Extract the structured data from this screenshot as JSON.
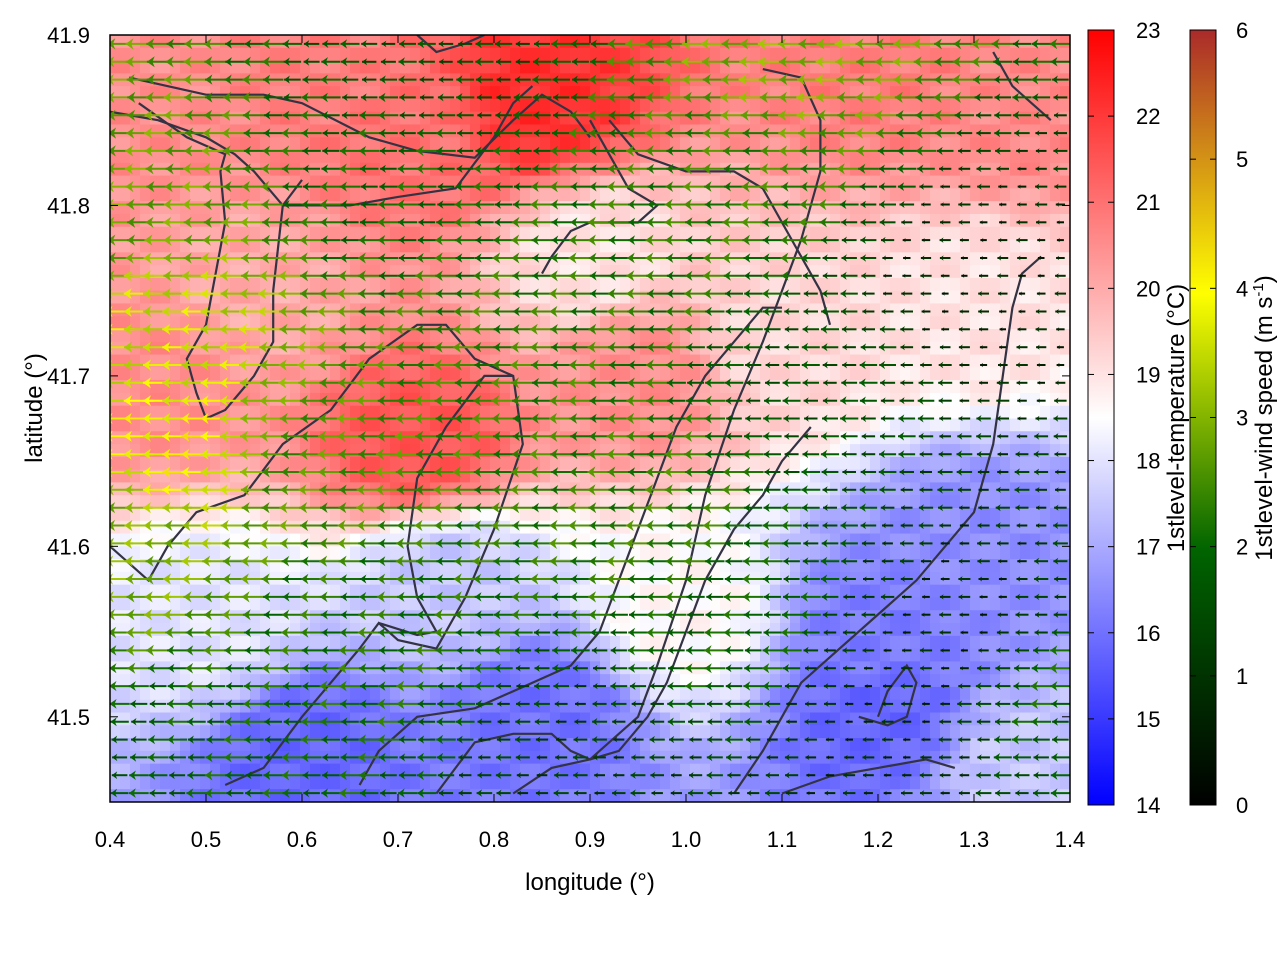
{
  "chart_data": {
    "type": "heatmap",
    "title": "",
    "xlabel": "longitude (°)",
    "ylabel": "latitude (°)",
    "xlim": [
      0.4,
      1.4
    ],
    "ylim": [
      41.45,
      41.9
    ],
    "x_ticks": [
      "0.4",
      "0.5",
      "0.6",
      "0.7",
      "0.8",
      "0.9",
      "1.0",
      "1.1",
      "1.2",
      "1.3",
      "1.4"
    ],
    "y_ticks": [
      "41.5",
      "41.6",
      "41.7",
      "41.8",
      "41.9"
    ],
    "temperature_colorbar": {
      "label": "1stlevel-temperature (°C)",
      "range": [
        14,
        23
      ],
      "ticks": [
        "14",
        "15",
        "16",
        "17",
        "18",
        "19",
        "20",
        "21",
        "22",
        "23"
      ],
      "colors": [
        "#0000ff",
        "#ffffff",
        "#ff0000"
      ]
    },
    "wind_colorbar": {
      "label_main": "1stlevel-wind speed (m s",
      "label_sup": "-1",
      "label_end": ")",
      "range": [
        0,
        6
      ],
      "ticks": [
        "0",
        "1",
        "2",
        "3",
        "4",
        "5",
        "6"
      ],
      "colors": [
        "#000000",
        "#006400",
        "#ffff00",
        "#aa2a2a"
      ]
    },
    "temperature_zones": [
      {
        "lon": 0.45,
        "lat": 41.87,
        "t": 20.5
      },
      {
        "lon": 0.62,
        "lat": 41.88,
        "t": 20.8
      },
      {
        "lon": 0.84,
        "lat": 41.86,
        "t": 22.2
      },
      {
        "lon": 0.72,
        "lat": 41.84,
        "t": 21.0
      },
      {
        "lon": 1.2,
        "lat": 41.88,
        "t": 20.8
      },
      {
        "lon": 1.35,
        "lat": 41.86,
        "t": 20.6
      },
      {
        "lon": 0.9,
        "lat": 41.77,
        "t": 19.0
      },
      {
        "lon": 0.55,
        "lat": 41.75,
        "t": 20.0
      },
      {
        "lon": 0.45,
        "lat": 41.7,
        "t": 20.5
      },
      {
        "lon": 0.72,
        "lat": 41.66,
        "t": 21.5
      },
      {
        "lon": 0.95,
        "lat": 41.7,
        "t": 20.5
      },
      {
        "lon": 1.1,
        "lat": 41.72,
        "t": 19.2
      },
      {
        "lon": 1.3,
        "lat": 41.74,
        "t": 19.0
      },
      {
        "lon": 0.5,
        "lat": 41.55,
        "t": 18.0
      },
      {
        "lon": 0.75,
        "lat": 41.58,
        "t": 17.5
      },
      {
        "lon": 0.6,
        "lat": 41.48,
        "t": 15.8
      },
      {
        "lon": 0.85,
        "lat": 41.5,
        "t": 16.0
      },
      {
        "lon": 1.0,
        "lat": 41.56,
        "t": 18.6
      },
      {
        "lon": 1.2,
        "lat": 41.55,
        "t": 16.2
      },
      {
        "lon": 1.3,
        "lat": 41.6,
        "t": 16.5
      },
      {
        "lon": 1.2,
        "lat": 41.5,
        "t": 15.8
      },
      {
        "lon": 1.35,
        "lat": 41.47,
        "t": 17.5
      }
    ],
    "wind_zones": [
      {
        "lon": 0.45,
        "lat": 41.72,
        "s": 3.6
      },
      {
        "lon": 0.48,
        "lat": 41.66,
        "s": 4.0
      },
      {
        "lon": 0.42,
        "lat": 41.6,
        "s": 3.0
      },
      {
        "lon": 0.42,
        "lat": 41.8,
        "s": 2.8
      },
      {
        "lon": 0.6,
        "lat": 41.65,
        "s": 2.6
      },
      {
        "lon": 0.8,
        "lat": 41.7,
        "s": 2.4
      },
      {
        "lon": 0.65,
        "lat": 41.55,
        "s": 2.2
      },
      {
        "lon": 0.95,
        "lat": 41.62,
        "s": 2.4
      },
      {
        "lon": 1.05,
        "lat": 41.55,
        "s": 2.0
      },
      {
        "lon": 0.55,
        "lat": 41.48,
        "s": 2.0
      },
      {
        "lon": 0.7,
        "lat": 41.82,
        "s": 2.0
      },
      {
        "lon": 0.75,
        "lat": 41.88,
        "s": 1.6
      },
      {
        "lon": 1.1,
        "lat": 41.88,
        "s": 3.0
      },
      {
        "lon": 1.05,
        "lat": 41.82,
        "s": 2.4
      },
      {
        "lon": 0.95,
        "lat": 41.78,
        "s": 2.3
      },
      {
        "lon": 1.15,
        "lat": 41.7,
        "s": 1.6
      },
      {
        "lon": 1.3,
        "lat": 41.75,
        "s": 0.7
      },
      {
        "lon": 1.3,
        "lat": 41.55,
        "s": 0.8
      },
      {
        "lon": 1.2,
        "lat": 41.5,
        "s": 0.8
      },
      {
        "lon": 1.38,
        "lat": 41.52,
        "s": 2.0
      },
      {
        "lon": 0.9,
        "lat": 41.47,
        "s": 1.2
      },
      {
        "lon": 0.4,
        "lat": 41.47,
        "s": 1.8
      }
    ],
    "wind_direction": "westward",
    "contour_lines": [
      [
        [
          0.42,
          41.875
        ],
        [
          0.5,
          41.865
        ],
        [
          0.56,
          41.865
        ],
        [
          0.6,
          41.86
        ],
        [
          0.67,
          41.84
        ],
        [
          0.72,
          41.832
        ],
        [
          0.78,
          41.828
        ],
        [
          0.82,
          41.85
        ],
        [
          0.85,
          41.865
        ],
        [
          0.88,
          41.855
        ],
        [
          0.9,
          41.84
        ]
      ],
      [
        [
          0.4,
          41.855
        ],
        [
          0.45,
          41.85
        ],
        [
          0.5,
          41.84
        ],
        [
          0.53,
          41.83
        ],
        [
          0.55,
          41.82
        ],
        [
          0.58,
          41.8
        ],
        [
          0.6,
          41.8
        ],
        [
          0.65,
          41.8
        ],
        [
          0.7,
          41.805
        ],
        [
          0.76,
          41.81
        ],
        [
          0.8,
          41.84
        ],
        [
          0.82,
          41.86
        ],
        [
          0.84,
          41.87
        ]
      ],
      [
        [
          0.43,
          41.86
        ],
        [
          0.48,
          41.84
        ],
        [
          0.52,
          41.83
        ],
        [
          0.515,
          41.82
        ],
        [
          0.52,
          41.79
        ],
        [
          0.5,
          41.73
        ],
        [
          0.48,
          41.71
        ],
        [
          0.49,
          41.69
        ],
        [
          0.5,
          41.675
        ],
        [
          0.52,
          41.68
        ],
        [
          0.55,
          41.7
        ],
        [
          0.57,
          41.72
        ],
        [
          0.57,
          41.75
        ],
        [
          0.58,
          41.8
        ],
        [
          0.6,
          41.815
        ]
      ],
      [
        [
          0.4,
          41.6
        ],
        [
          0.44,
          41.58
        ],
        [
          0.46,
          41.6
        ],
        [
          0.49,
          41.62
        ],
        [
          0.54,
          41.63
        ],
        [
          0.58,
          41.66
        ],
        [
          0.63,
          41.68
        ],
        [
          0.67,
          41.71
        ],
        [
          0.72,
          41.73
        ],
        [
          0.75,
          41.73
        ],
        [
          0.78,
          41.71
        ],
        [
          0.82,
          41.7
        ],
        [
          0.83,
          41.66
        ],
        [
          0.8,
          41.61
        ],
        [
          0.77,
          41.57
        ],
        [
          0.74,
          41.54
        ],
        [
          0.7,
          41.545
        ],
        [
          0.68,
          41.555
        ],
        [
          0.66,
          41.54
        ],
        [
          0.63,
          41.52
        ],
        [
          0.6,
          41.5
        ],
        [
          0.56,
          41.47
        ],
        [
          0.52,
          41.46
        ]
      ],
      [
        [
          0.68,
          41.555
        ],
        [
          0.72,
          41.548
        ],
        [
          0.74,
          41.55
        ],
        [
          0.72,
          41.57
        ],
        [
          0.71,
          41.6
        ],
        [
          0.72,
          41.64
        ],
        [
          0.75,
          41.67
        ],
        [
          0.79,
          41.7
        ],
        [
          0.82,
          41.7
        ]
      ],
      [
        [
          0.66,
          41.46
        ],
        [
          0.68,
          41.48
        ],
        [
          0.72,
          41.5
        ],
        [
          0.78,
          41.505
        ],
        [
          0.84,
          41.52
        ],
        [
          0.88,
          41.53
        ],
        [
          0.91,
          41.55
        ],
        [
          0.93,
          41.58
        ],
        [
          0.95,
          41.61
        ],
        [
          0.97,
          41.64
        ],
        [
          0.99,
          41.67
        ],
        [
          1.02,
          41.7
        ],
        [
          1.05,
          41.72
        ],
        [
          1.08,
          41.74
        ],
        [
          1.1,
          41.74
        ]
      ],
      [
        [
          0.74,
          41.455
        ],
        [
          0.76,
          41.47
        ],
        [
          0.78,
          41.485
        ],
        [
          0.82,
          41.49
        ],
        [
          0.86,
          41.49
        ],
        [
          0.88,
          41.48
        ],
        [
          0.9,
          41.475
        ],
        [
          0.93,
          41.48
        ],
        [
          0.96,
          41.5
        ],
        [
          0.98,
          41.52
        ],
        [
          1.0,
          41.55
        ],
        [
          1.02,
          41.58
        ],
        [
          1.05,
          41.61
        ],
        [
          1.08,
          41.63
        ],
        [
          1.1,
          41.65
        ],
        [
          1.13,
          41.67
        ]
      ],
      [
        [
          1.05,
          41.455
        ],
        [
          1.08,
          41.48
        ],
        [
          1.1,
          41.5
        ],
        [
          1.12,
          41.52
        ],
        [
          1.16,
          41.54
        ],
        [
          1.2,
          41.56
        ],
        [
          1.24,
          41.58
        ],
        [
          1.27,
          41.6
        ],
        [
          1.3,
          41.62
        ],
        [
          1.32,
          41.66
        ],
        [
          1.33,
          41.7
        ],
        [
          1.34,
          41.74
        ],
        [
          1.35,
          41.76
        ],
        [
          1.37,
          41.77
        ]
      ],
      [
        [
          0.82,
          41.455
        ],
        [
          0.86,
          41.47
        ],
        [
          0.9,
          41.475
        ],
        [
          0.95,
          41.5
        ],
        [
          0.97,
          41.53
        ],
        [
          1.0,
          41.58
        ],
        [
          1.02,
          41.63
        ],
        [
          1.05,
          41.68
        ],
        [
          1.08,
          41.72
        ],
        [
          1.1,
          41.75
        ],
        [
          1.12,
          41.78
        ],
        [
          1.14,
          41.82
        ],
        [
          1.14,
          41.85
        ],
        [
          1.12,
          41.875
        ],
        [
          1.08,
          41.88
        ]
      ],
      [
        [
          1.18,
          41.5
        ],
        [
          1.21,
          41.495
        ],
        [
          1.23,
          41.5
        ],
        [
          1.24,
          41.52
        ],
        [
          1.23,
          41.53
        ],
        [
          1.21,
          41.515
        ],
        [
          1.2,
          41.5
        ]
      ],
      [
        [
          1.1,
          41.455
        ],
        [
          1.15,
          41.465
        ],
        [
          1.2,
          41.47
        ],
        [
          1.25,
          41.475
        ],
        [
          1.28,
          41.47
        ]
      ],
      [
        [
          0.9,
          41.85
        ],
        [
          0.92,
          41.83
        ],
        [
          0.94,
          41.81
        ],
        [
          0.97,
          41.8
        ],
        [
          0.95,
          41.79
        ],
        [
          0.92,
          41.79
        ],
        [
          0.9,
          41.79
        ],
        [
          0.88,
          41.785
        ],
        [
          0.86,
          41.77
        ],
        [
          0.85,
          41.76
        ]
      ],
      [
        [
          0.92,
          41.85
        ],
        [
          0.95,
          41.83
        ],
        [
          1.0,
          41.82
        ],
        [
          1.05,
          41.82
        ],
        [
          1.08,
          41.81
        ],
        [
          1.1,
          41.79
        ],
        [
          1.12,
          41.77
        ],
        [
          1.14,
          41.75
        ],
        [
          1.15,
          41.73
        ]
      ],
      [
        [
          0.72,
          41.9
        ],
        [
          0.74,
          41.89
        ],
        [
          0.77,
          41.895
        ],
        [
          0.79,
          41.9
        ]
      ],
      [
        [
          1.32,
          41.89
        ],
        [
          1.34,
          41.87
        ],
        [
          1.36,
          41.86
        ],
        [
          1.38,
          41.85
        ]
      ]
    ]
  }
}
